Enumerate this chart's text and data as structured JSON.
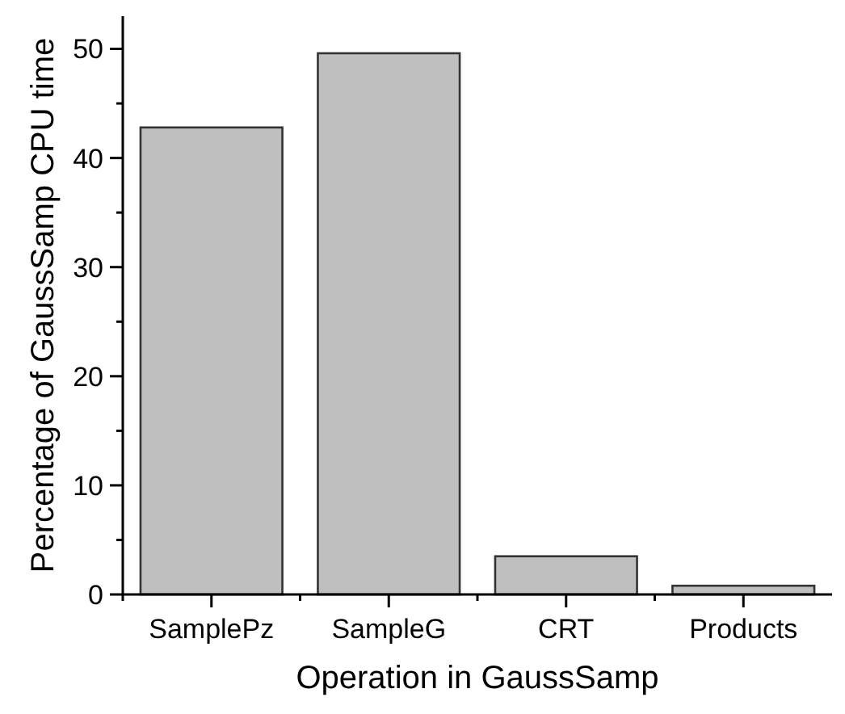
{
  "chart_data": {
    "type": "bar",
    "xlabel": "Operation in GaussSamp",
    "ylabel": "Percentage of GaussSamp CPU time",
    "categories": [
      "SamplePz",
      "SampleG",
      "CRT",
      "Products"
    ],
    "values": [
      42.8,
      49.6,
      3.5,
      0.8
    ],
    "color": "#bfbfbf",
    "ylim": [
      0,
      53
    ],
    "yticks": [
      0,
      {
        "value": 5,
        "label": null
      },
      10,
      {
        "value": 15,
        "label": null
      },
      20,
      {
        "value": 25,
        "label": null
      },
      30,
      {
        "value": 35,
        "label": null
      },
      40,
      {
        "value": 45,
        "label": null
      },
      50
    ],
    "grid": false
  }
}
